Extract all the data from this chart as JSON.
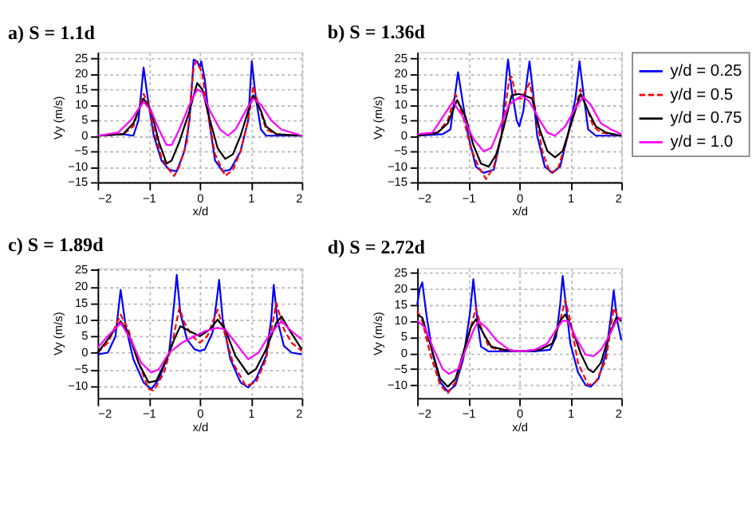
{
  "chart_data": [
    {
      "type": "line",
      "title": "a) S = 1.1d",
      "xlabel": "x/d",
      "ylabel": "Vy (m/s)",
      "xlim": [
        -2,
        2
      ],
      "xticks": [
        -2,
        -1,
        0,
        1,
        2
      ],
      "ylim": [
        -15,
        27
      ],
      "yticks": [
        -15,
        -10,
        -5,
        0,
        5,
        10,
        15,
        20,
        25
      ],
      "grid": true,
      "legend": false,
      "marker": "none",
      "series": [
        {
          "color": "#0000ff",
          "line_style": "solid",
          "x": [
            -2,
            -1.5,
            -1.3,
            -1.2,
            -1.1,
            -1.0,
            -0.9,
            -0.75,
            -0.6,
            -0.45,
            -0.3,
            -0.2,
            -0.12,
            -0.05,
            0,
            0.03,
            0.1,
            0.2,
            0.3,
            0.45,
            0.6,
            0.8,
            0.95,
            1.02,
            1.1,
            1.2,
            1.3,
            1.5,
            2
          ],
          "values": [
            0,
            0.5,
            0,
            5,
            22,
            10,
            0,
            -8,
            -11,
            -11.5,
            -5,
            5,
            24.5,
            24,
            22,
            24,
            18,
            3,
            -8,
            -11.5,
            -11,
            -5,
            5,
            24,
            12,
            2,
            0,
            0,
            0
          ]
        },
        {
          "color": "#ff0000",
          "line_style": "dashed",
          "x": [
            -2,
            -1.5,
            -1.3,
            -1.1,
            -1.0,
            -0.9,
            -0.75,
            -0.6,
            -0.5,
            -0.4,
            -0.25,
            -0.12,
            -0.07,
            0,
            0.05,
            0.15,
            0.3,
            0.5,
            0.65,
            0.8,
            0.95,
            1.05,
            1.15,
            1.3,
            1.5,
            2
          ],
          "values": [
            0,
            0.5,
            3,
            13.5,
            10,
            2,
            -7,
            -11,
            -13,
            -10,
            -2,
            22,
            24,
            22,
            20,
            8,
            -6,
            -13,
            -11,
            -5,
            5,
            16,
            10,
            2,
            0.5,
            0
          ]
        },
        {
          "color": "#000000",
          "line_style": "solid",
          "x": [
            -2,
            -1.5,
            -1.3,
            -1.1,
            -0.95,
            -0.8,
            -0.65,
            -0.55,
            -0.4,
            -0.2,
            -0.05,
            0.05,
            0.2,
            0.35,
            0.5,
            0.65,
            0.8,
            0.95,
            1.05,
            1.2,
            1.3,
            1.5,
            2
          ],
          "values": [
            0,
            0.5,
            4,
            12,
            8,
            -2,
            -9,
            -8,
            -2,
            8,
            17,
            15,
            5,
            -4,
            -7.5,
            -6,
            0,
            8,
            13,
            8,
            3,
            0.5,
            0
          ]
        },
        {
          "color": "#ff00ff",
          "line_style": "solid",
          "x": [
            -2,
            -1.6,
            -1.35,
            -1.1,
            -0.95,
            -0.8,
            -0.65,
            -0.55,
            -0.4,
            -0.2,
            -0.05,
            0.05,
            0.2,
            0.4,
            0.55,
            0.7,
            0.9,
            1.05,
            1.2,
            1.4,
            1.6,
            2
          ],
          "values": [
            0,
            1,
            5,
            11,
            8,
            2,
            -3,
            -3,
            2,
            10,
            15,
            14,
            8,
            2,
            0,
            2,
            8,
            12,
            10,
            5,
            2,
            0
          ]
        }
      ]
    },
    {
      "type": "line",
      "title": "b) S = 1.36d",
      "xlabel": "x/d",
      "ylabel": "Vy (m/s)",
      "xlim": [
        -2,
        2
      ],
      "xticks": [
        -2,
        -1,
        0,
        1,
        2
      ],
      "ylim": [
        -15,
        27
      ],
      "yticks": [
        -15,
        -10,
        -5,
        0,
        5,
        10,
        15,
        20,
        25
      ],
      "grid": true,
      "legend": "right",
      "marker": "none",
      "series": [
        {
          "name": "y/d = 0.25",
          "color": "#0000ff",
          "line_style": "solid",
          "x": [
            -2,
            -1.5,
            -1.35,
            -1.2,
            -1.1,
            -1.0,
            -0.85,
            -0.7,
            -0.5,
            -0.35,
            -0.25,
            -0.22,
            -0.15,
            -0.05,
            0,
            0.08,
            0.15,
            0.2,
            0.27,
            0.35,
            0.5,
            0.65,
            0.8,
            0.95,
            1.1,
            1.18,
            1.27,
            1.35,
            1.5,
            2
          ],
          "values": [
            0,
            0.5,
            2,
            20.5,
            10,
            0,
            -10,
            -12,
            -11,
            0,
            20,
            24.5,
            15,
            5,
            3,
            8,
            18,
            24,
            14,
            0,
            -10,
            -12,
            -10,
            0,
            12,
            24,
            12,
            2,
            0,
            0
          ]
        },
        {
          "name": "y/d = 0.5",
          "color": "#ff0000",
          "line_style": "dashed",
          "x": [
            -2,
            -1.6,
            -1.4,
            -1.25,
            -1.1,
            -0.95,
            -0.8,
            -0.65,
            -0.5,
            -0.35,
            -0.2,
            -0.15,
            -0.05,
            0.05,
            0.2,
            0.3,
            0.45,
            0.6,
            0.75,
            0.9,
            1.05,
            1.2,
            1.3,
            1.45,
            1.6,
            2
          ],
          "values": [
            0,
            1,
            5,
            13.5,
            6,
            -4,
            -10,
            -14,
            -10,
            0,
            18,
            19,
            12,
            12,
            17,
            10,
            -5,
            -12,
            -11,
            -3,
            6,
            15,
            10,
            3,
            1,
            0
          ]
        },
        {
          "name": "y/d = 0.75",
          "color": "#000000",
          "line_style": "solid",
          "x": [
            -2,
            -1.6,
            -1.4,
            -1.22,
            -1.05,
            -0.9,
            -0.75,
            -0.6,
            -0.45,
            -0.3,
            -0.15,
            0,
            0.1,
            0.25,
            0.4,
            0.55,
            0.7,
            0.85,
            1.0,
            1.2,
            1.35,
            1.5,
            1.7,
            2
          ],
          "values": [
            0,
            1,
            4,
            11.5,
            6,
            -3,
            -9,
            -10,
            -6,
            3,
            13,
            13.5,
            13,
            12,
            2,
            -5,
            -7,
            -5,
            3,
            13.5,
            8,
            3,
            1,
            0
          ]
        },
        {
          "name": "y/d = 1.0",
          "color": "#ff00ff",
          "line_style": "solid",
          "x": [
            -2,
            -1.7,
            -1.5,
            -1.3,
            -1.1,
            -0.9,
            -0.7,
            -0.55,
            -0.4,
            -0.2,
            0.05,
            0.2,
            0.4,
            0.55,
            0.7,
            0.9,
            1.1,
            1.25,
            1.4,
            1.6,
            1.8,
            2
          ],
          "values": [
            0.5,
            1,
            6,
            11,
            6,
            -1,
            -5,
            -4,
            2,
            10,
            13,
            11,
            5,
            1,
            0,
            3,
            9,
            12.5,
            10,
            4,
            2,
            0.5
          ]
        }
      ]
    },
    {
      "type": "line",
      "title": "c) S = 1.89d",
      "xlabel": "x/d",
      "ylabel": "Vy (m/s)",
      "xlim": [
        -2,
        2
      ],
      "xticks": [
        -2,
        -1,
        0,
        1,
        2
      ],
      "ylim": [
        -13.7,
        25.6
      ],
      "yticks": [
        -10,
        -5,
        0,
        5,
        10,
        15,
        20,
        25
      ],
      "grid": true,
      "legend": false,
      "marker": "none",
      "series": [
        {
          "color": "#0000ff",
          "line_style": "solid",
          "x": [
            -2,
            -1.8,
            -1.65,
            -1.55,
            -1.45,
            -1.3,
            -1.1,
            -0.95,
            -0.8,
            -0.6,
            -0.5,
            -0.45,
            -0.38,
            -0.25,
            -0.1,
            0,
            0.1,
            0.25,
            0.35,
            0.38,
            0.45,
            0.6,
            0.8,
            0.95,
            1.1,
            1.3,
            1.4,
            1.45,
            1.52,
            1.65,
            1.8,
            2
          ],
          "values": [
            -0.5,
            0,
            5,
            19,
            8,
            -2,
            -9,
            -11,
            -8,
            0,
            15,
            23.5,
            12,
            4,
            1,
            0.5,
            1,
            6,
            18,
            22,
            10,
            -2,
            -9,
            -10.5,
            -8,
            -1,
            10,
            20.5,
            10,
            2,
            0,
            -0.5
          ]
        },
        {
          "color": "#ff0000",
          "line_style": "dashed",
          "x": [
            -2,
            -1.8,
            -1.55,
            -1.4,
            -1.2,
            -1.0,
            -0.9,
            -0.7,
            -0.55,
            -0.4,
            -0.3,
            -0.15,
            0,
            0.15,
            0.35,
            0.45,
            0.65,
            0.9,
            1.1,
            1.3,
            1.5,
            1.65,
            1.8,
            2
          ],
          "values": [
            0,
            3,
            11.5,
            7,
            -3,
            -11,
            -11.5,
            -6,
            2,
            13.5,
            9,
            5,
            3,
            5,
            13,
            8,
            -3,
            -10,
            -9,
            -2,
            15,
            7,
            3,
            0.5
          ]
        },
        {
          "color": "#000000",
          "line_style": "solid",
          "x": [
            -2,
            -1.8,
            -1.55,
            -1.4,
            -1.2,
            -1.0,
            -0.85,
            -0.65,
            -0.5,
            -0.38,
            -0.2,
            0,
            0.2,
            0.35,
            0.5,
            0.7,
            0.95,
            1.1,
            1.3,
            1.5,
            1.6,
            1.75,
            2
          ],
          "values": [
            0,
            4,
            9.5,
            6,
            -3,
            -9,
            -8.5,
            -2,
            4,
            8,
            6.5,
            5,
            7,
            10,
            7,
            -1,
            -6.5,
            -5,
            1,
            9,
            11,
            7,
            1
          ]
        },
        {
          "color": "#ff00ff",
          "line_style": "solid",
          "x": [
            -2,
            -1.8,
            -1.55,
            -1.35,
            -1.15,
            -0.95,
            -0.8,
            -0.6,
            -0.35,
            -0.1,
            0.1,
            0.35,
            0.5,
            0.7,
            0.95,
            1.15,
            1.35,
            1.6,
            1.8,
            2
          ],
          "values": [
            1.5,
            5,
            9,
            4,
            -3,
            -6,
            -5,
            0,
            3,
            5,
            6.5,
            7.5,
            7,
            3,
            -2,
            0,
            5,
            9.5,
            6.5,
            4
          ]
        }
      ]
    },
    {
      "type": "line",
      "title": "d) S = 2.72d",
      "xlabel": "x/d",
      "ylabel": "Vy (m/s)",
      "xlim": [
        -2,
        2
      ],
      "xticks": [
        -2,
        -1,
        0,
        1,
        2
      ],
      "ylim": [
        -14,
        26.5
      ],
      "yticks": [
        -10,
        -5,
        0,
        5,
        10,
        15,
        20,
        25
      ],
      "grid": true,
      "legend": false,
      "marker": "none",
      "series": [
        {
          "color": "#0000ff",
          "line_style": "solid",
          "x": [
            -2,
            -1.95,
            -1.9,
            -1.82,
            -1.7,
            -1.55,
            -1.4,
            -1.25,
            -1.1,
            -0.97,
            -0.9,
            -0.82,
            -0.75,
            -0.6,
            -0.3,
            0,
            0.3,
            0.6,
            0.72,
            0.8,
            0.85,
            0.92,
            1.0,
            1.15,
            1.3,
            1.4,
            1.55,
            1.7,
            1.8,
            1.85,
            1.92,
            2
          ],
          "values": [
            15,
            20,
            22,
            12,
            0,
            -9,
            -12,
            -10,
            -2,
            12,
            23,
            10,
            2,
            0.5,
            0.5,
            0.5,
            0.5,
            1,
            5,
            15,
            24,
            14,
            3,
            -6,
            -10,
            -10.5,
            -8,
            0,
            12,
            19.5,
            10,
            4
          ]
        },
        {
          "color": "#ff0000",
          "line_style": "dashed",
          "x": [
            -2,
            -1.9,
            -1.75,
            -1.55,
            -1.4,
            -1.25,
            -1.1,
            -0.95,
            -0.85,
            -0.75,
            -0.6,
            -0.4,
            0,
            0.4,
            0.65,
            0.8,
            0.9,
            1.0,
            1.15,
            1.35,
            1.5,
            1.7,
            1.85,
            1.95,
            2
          ],
          "values": [
            13,
            10,
            0,
            -10,
            -12.5,
            -9,
            -1,
            8,
            14,
            8,
            2,
            1,
            0.5,
            1,
            3,
            10,
            16.5,
            10,
            -3,
            -10,
            -9,
            -2,
            14,
            11,
            10
          ]
        },
        {
          "color": "#000000",
          "line_style": "solid",
          "x": [
            -2,
            -1.9,
            -1.75,
            -1.55,
            -1.4,
            -1.25,
            -1.1,
            -0.95,
            -0.85,
            -0.7,
            -0.55,
            -0.3,
            0,
            0.4,
            0.65,
            0.8,
            0.9,
            1.0,
            1.2,
            1.35,
            1.45,
            1.6,
            1.75,
            1.9,
            2
          ],
          "values": [
            12,
            11,
            3,
            -8,
            -10.5,
            -8,
            0,
            8,
            10.5,
            6,
            2,
            1,
            0.5,
            1,
            3,
            10,
            12,
            9,
            0,
            -5,
            -6,
            -3,
            5,
            11,
            10
          ]
        },
        {
          "color": "#ff00ff",
          "line_style": "solid",
          "x": [
            -2,
            -1.85,
            -1.7,
            -1.5,
            -1.38,
            -1.2,
            -1.05,
            -0.9,
            -0.8,
            -0.65,
            -0.45,
            -0.2,
            0,
            0.3,
            0.55,
            0.75,
            0.85,
            0.95,
            1.1,
            1.3,
            1.45,
            1.6,
            1.75,
            1.9,
            2
          ],
          "values": [
            10,
            8,
            2,
            -5,
            -6.5,
            -5,
            1,
            7,
            10,
            8,
            4,
            1,
            0.5,
            1,
            3,
            8,
            10,
            10,
            5,
            -0.5,
            -1,
            1,
            5,
            10,
            11
          ]
        }
      ]
    }
  ]
}
